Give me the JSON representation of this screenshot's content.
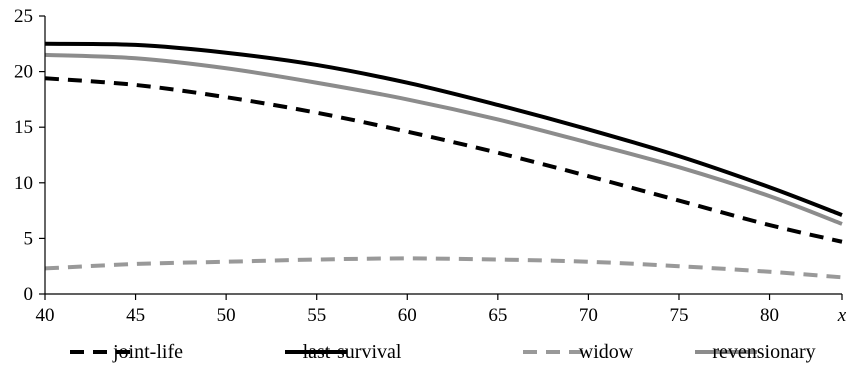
{
  "chart_data": {
    "type": "line",
    "title": "",
    "xlabel": "",
    "ylabel": "",
    "x": [
      40,
      45,
      50,
      55,
      60,
      65,
      70,
      75,
      80,
      84
    ],
    "x_tick_labels": [
      "40",
      "45",
      "50",
      "55",
      "60",
      "65",
      "70",
      "75",
      "80",
      "x"
    ],
    "xlim": [
      40,
      84
    ],
    "y_ticks": [
      0,
      5,
      10,
      15,
      20,
      25
    ],
    "ylim": [
      0,
      25
    ],
    "grid": false,
    "legend_position": "bottom",
    "series": [
      {
        "name": "joint-life",
        "color": "#000000",
        "style": "dashed",
        "values": [
          19.4,
          18.8,
          17.7,
          16.3,
          14.6,
          12.7,
          10.6,
          8.4,
          6.2,
          4.7
        ]
      },
      {
        "name": "last-survival",
        "color": "#000000",
        "style": "solid",
        "values": [
          22.5,
          22.4,
          21.7,
          20.6,
          19.0,
          17.0,
          14.8,
          12.4,
          9.6,
          7.1
        ]
      },
      {
        "name": "widow",
        "color": "#999999",
        "style": "dashed",
        "values": [
          2.3,
          2.7,
          2.9,
          3.1,
          3.2,
          3.1,
          2.9,
          2.5,
          2.0,
          1.5
        ]
      },
      {
        "name": "revensionary",
        "color": "#8c8c8c",
        "style": "solid",
        "values": [
          21.5,
          21.2,
          20.3,
          19.0,
          17.5,
          15.7,
          13.6,
          11.4,
          8.8,
          6.3
        ]
      }
    ]
  }
}
